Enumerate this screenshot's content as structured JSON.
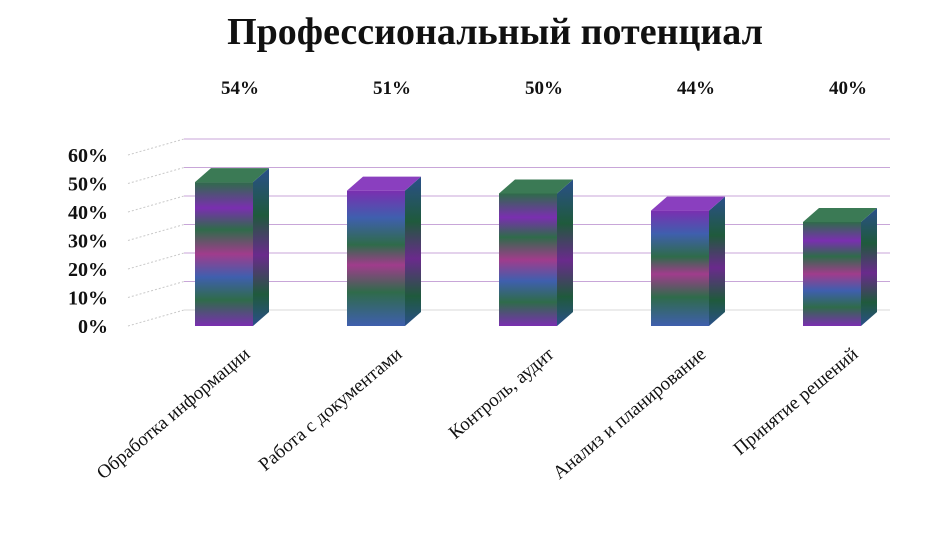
{
  "chart_data": {
    "type": "bar",
    "title": "Профессиональный потенциал",
    "xlabel": "",
    "ylabel": "",
    "categories": [
      "Обработка информации",
      "Работа с документами",
      "Контроль, аудит",
      "Анализ и планирование",
      "Принятие решений"
    ],
    "series": [
      {
        "values": [
          54,
          51,
          50,
          44,
          40
        ],
        "data_labels": [
          "54%",
          "51%",
          "50%",
          "44%",
          "40%"
        ]
      }
    ],
    "y_ticks": [
      "0%",
      "10%",
      "20%",
      "30%",
      "40%",
      "50%",
      "60%"
    ],
    "ylim": [
      0,
      60
    ],
    "grid": true,
    "legend": "none",
    "three_d": true,
    "colors": {
      "gridline": "#c8a6d8",
      "green": "#2f6b4a",
      "purple": "#7a2fb0",
      "blue": "#3f5fae",
      "magenta": "#a03c8c",
      "text": "#111111"
    }
  }
}
